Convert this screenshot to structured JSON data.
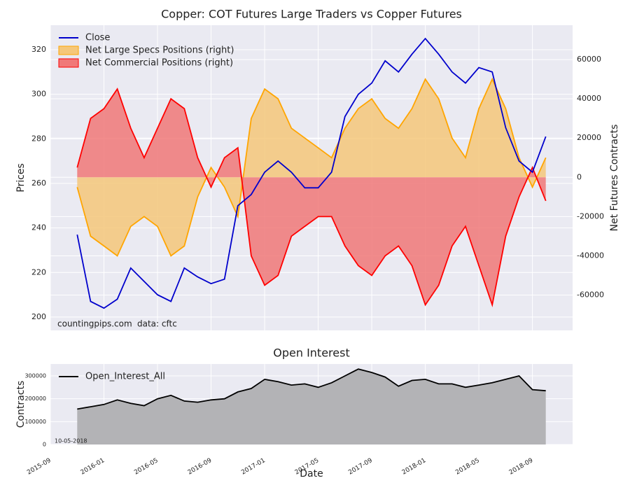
{
  "chart_data": [
    {
      "type": "line",
      "title": "Copper: COT Futures Large Traders vs Copper Futures",
      "ylabel": "Prices",
      "y2label": "Net Futures Contracts",
      "x": [
        "2015-11",
        "2015-12",
        "2016-01",
        "2016-02",
        "2016-03",
        "2016-04",
        "2016-05",
        "2016-06",
        "2016-07",
        "2016-08",
        "2016-09",
        "2016-10",
        "2016-11",
        "2016-12",
        "2017-01",
        "2017-02",
        "2017-03",
        "2017-04",
        "2017-05",
        "2017-06",
        "2017-07",
        "2017-08",
        "2017-09",
        "2017-10",
        "2017-11",
        "2017-12",
        "2018-01",
        "2018-02",
        "2018-03",
        "2018-04",
        "2018-05",
        "2018-06",
        "2018-07",
        "2018-08",
        "2018-09",
        "2018-10"
      ],
      "xlim": [
        "2015-09",
        "2018-12"
      ],
      "xticks": [
        "2015-09",
        "2016-01",
        "2016-05",
        "2016-09",
        "2017-01",
        "2017-05",
        "2017-09",
        "2018-01",
        "2018-05",
        "2018-09"
      ],
      "ylim": [
        194,
        331
      ],
      "yticks": [
        200,
        220,
        240,
        260,
        280,
        300,
        320
      ],
      "y2lim": [
        -78000,
        77500
      ],
      "y2ticks": [
        -60000,
        -40000,
        -20000,
        0,
        20000,
        40000,
        60000
      ],
      "grid": true,
      "legend": "upper left",
      "annotations": [
        "countingpips.com",
        "data: cftc"
      ],
      "series": [
        {
          "name": "Close",
          "color": "#0000cc",
          "axis": "y",
          "values": [
            237,
            207,
            204,
            208,
            222,
            216,
            210,
            207,
            222,
            218,
            215,
            217,
            250,
            255,
            265,
            270,
            265,
            258,
            258,
            265,
            290,
            300,
            305,
            315,
            310,
            318,
            325,
            318,
            310,
            305,
            312,
            310,
            285,
            270,
            265,
            281
          ]
        },
        {
          "name": "Net Large Specs Positions (right)",
          "color": "#ffa500",
          "fill": "#f5c77a",
          "axis": "y2",
          "values": [
            -5000,
            -30000,
            -35000,
            -40000,
            -25000,
            -20000,
            -25000,
            -40000,
            -35000,
            -10000,
            5000,
            -5000,
            -20000,
            30000,
            45000,
            40000,
            25000,
            20000,
            15000,
            10000,
            25000,
            35000,
            40000,
            30000,
            25000,
            35000,
            50000,
            40000,
            20000,
            10000,
            35000,
            50000,
            35000,
            10000,
            -5000,
            10000
          ]
        },
        {
          "name": "Net Commercial Positions (right)",
          "color": "#ff0000",
          "fill": "#f07878",
          "axis": "y2",
          "values": [
            5000,
            30000,
            35000,
            45000,
            25000,
            10000,
            25000,
            40000,
            35000,
            10000,
            -5000,
            10000,
            15000,
            -40000,
            -55000,
            -50000,
            -30000,
            -25000,
            -20000,
            -20000,
            -35000,
            -45000,
            -50000,
            -40000,
            -35000,
            -45000,
            -65000,
            -55000,
            -35000,
            -25000,
            -45000,
            -65000,
            -30000,
            -10000,
            5000,
            -12000
          ]
        }
      ]
    },
    {
      "type": "area",
      "title": "Open Interest",
      "xlabel": "Date",
      "ylabel": "Contracts",
      "x": [
        "2015-11",
        "2015-12",
        "2016-01",
        "2016-02",
        "2016-03",
        "2016-04",
        "2016-05",
        "2016-06",
        "2016-07",
        "2016-08",
        "2016-09",
        "2016-10",
        "2016-11",
        "2016-12",
        "2017-01",
        "2017-02",
        "2017-03",
        "2017-04",
        "2017-05",
        "2017-06",
        "2017-07",
        "2017-08",
        "2017-09",
        "2017-10",
        "2017-11",
        "2017-12",
        "2018-01",
        "2018-02",
        "2018-03",
        "2018-04",
        "2018-05",
        "2018-06",
        "2018-07",
        "2018-08",
        "2018-09",
        "2018-10"
      ],
      "xlim": [
        "2015-09",
        "2018-12"
      ],
      "xticks": [
        "2015-09",
        "2016-01",
        "2016-05",
        "2016-09",
        "2017-01",
        "2017-05",
        "2017-09",
        "2018-01",
        "2018-05",
        "2018-09"
      ],
      "ylim": [
        0,
        352000
      ],
      "yticks": [
        0,
        100000,
        200000,
        300000
      ],
      "grid": true,
      "legend": "upper left",
      "annotations": [
        "10-05-2018"
      ],
      "series": [
        {
          "name": "Open_Interest_All",
          "color": "#000000",
          "fill": "#b3b3b6",
          "values": [
            155000,
            165000,
            175000,
            195000,
            180000,
            170000,
            200000,
            215000,
            190000,
            185000,
            195000,
            200000,
            230000,
            245000,
            285000,
            275000,
            260000,
            265000,
            250000,
            270000,
            300000,
            330000,
            315000,
            295000,
            255000,
            280000,
            285000,
            265000,
            265000,
            250000,
            260000,
            270000,
            285000,
            300000,
            240000,
            235000
          ]
        }
      ]
    }
  ]
}
